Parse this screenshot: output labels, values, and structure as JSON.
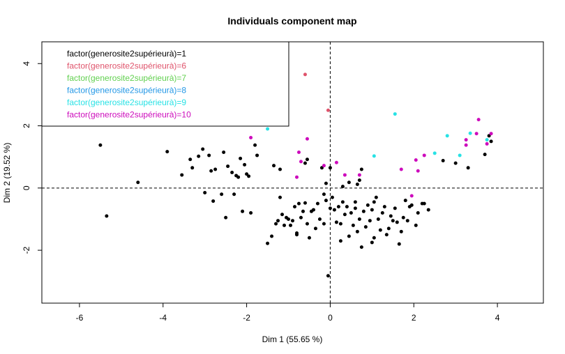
{
  "chart_data": {
    "type": "scatter",
    "title": "Individuals component map",
    "xlabel": "Dim 1 (55.65 %)",
    "ylabel": "Dim 2 (19.52 %)",
    "xlim": [
      -6.9,
      5.1
    ],
    "ylim": [
      -3.7,
      4.7
    ],
    "x_ticks": [
      -6,
      -4,
      -2,
      0,
      2,
      4
    ],
    "y_ticks": [
      -2,
      0,
      2,
      4
    ],
    "x_tick_labels": [
      "-6",
      "-4",
      "-2",
      "0",
      "2",
      "4"
    ],
    "y_tick_labels": [
      "-2",
      "0",
      "2",
      "4"
    ],
    "reference_lines": {
      "x": 0,
      "y": 0,
      "style": "dashed"
    },
    "legend": {
      "position": "top-left"
    },
    "series": [
      {
        "name": "factor(generosite2supérieurà)=1",
        "color": "#000000",
        "points": [
          [
            -5.5,
            1.38
          ],
          [
            -5.35,
            -0.9
          ],
          [
            -4.6,
            0.18
          ],
          [
            -3.9,
            1.17
          ],
          [
            -3.55,
            0.42
          ],
          [
            -3.35,
            0.92
          ],
          [
            -3.3,
            0.65
          ],
          [
            -3.15,
            1.02
          ],
          [
            -3.05,
            1.25
          ],
          [
            -3.0,
            -0.15
          ],
          [
            -2.9,
            1.05
          ],
          [
            -2.85,
            0.55
          ],
          [
            -2.8,
            -0.42
          ],
          [
            -2.75,
            0.6
          ],
          [
            -2.6,
            -0.2
          ],
          [
            -2.55,
            1.15
          ],
          [
            -2.5,
            -0.95
          ],
          [
            -2.45,
            0.7
          ],
          [
            -2.35,
            0.5
          ],
          [
            -2.3,
            -0.2
          ],
          [
            -2.25,
            0.4
          ],
          [
            -2.2,
            0.35
          ],
          [
            -2.15,
            0.95
          ],
          [
            -2.1,
            -0.75
          ],
          [
            -2.05,
            0.75
          ],
          [
            -2.0,
            0.45
          ],
          [
            -1.95,
            0.38
          ],
          [
            -1.9,
            -0.8
          ],
          [
            -1.8,
            1.38
          ],
          [
            -1.75,
            1.05
          ],
          [
            -1.55,
            3.0
          ],
          [
            -1.5,
            -1.78
          ],
          [
            -1.4,
            -1.55
          ],
          [
            -1.35,
            0.72
          ],
          [
            -1.3,
            -1.15
          ],
          [
            -1.25,
            -1.05
          ],
          [
            -1.2,
            0.6
          ],
          [
            -1.2,
            -0.3
          ],
          [
            -1.15,
            -0.85
          ],
          [
            -1.1,
            -1.2
          ],
          [
            -1.05,
            -0.95
          ],
          [
            -1.0,
            -1.0
          ],
          [
            -0.95,
            -1.2
          ],
          [
            -0.9,
            -1.05
          ],
          [
            -0.85,
            -0.6
          ],
          [
            -0.8,
            -1.5
          ],
          [
            -0.8,
            -1.45
          ],
          [
            -0.75,
            -0.5
          ],
          [
            -0.7,
            -0.95
          ],
          [
            -0.65,
            -0.75
          ],
          [
            -0.6,
            0.8
          ],
          [
            -0.6,
            -0.48
          ],
          [
            -0.55,
            0.92
          ],
          [
            -0.55,
            -1.15
          ],
          [
            -0.5,
            -1.6
          ],
          [
            -0.45,
            -0.75
          ],
          [
            -0.4,
            -0.7
          ],
          [
            -0.35,
            -1.3
          ],
          [
            -0.3,
            -0.5
          ],
          [
            -0.25,
            -1.0
          ],
          [
            -0.2,
            0.65
          ],
          [
            -0.15,
            -0.2
          ],
          [
            -0.15,
            -1.15
          ],
          [
            -0.1,
            0.15
          ],
          [
            -0.1,
            -0.4
          ],
          [
            -0.05,
            -2.82
          ],
          [
            0.0,
            0.65
          ],
          [
            0.0,
            -0.65
          ],
          [
            0.05,
            -0.3
          ],
          [
            0.1,
            -0.7
          ],
          [
            0.15,
            -1.1
          ],
          [
            0.2,
            -0.6
          ],
          [
            0.25,
            -1.15
          ],
          [
            0.25,
            -1.7
          ],
          [
            0.3,
            0.05
          ],
          [
            0.3,
            -0.45
          ],
          [
            0.35,
            -0.85
          ],
          [
            0.4,
            -0.6
          ],
          [
            0.45,
            -1.55
          ],
          [
            0.45,
            0.18
          ],
          [
            0.5,
            -0.8
          ],
          [
            0.55,
            -1.2
          ],
          [
            0.6,
            -0.45
          ],
          [
            0.6,
            -0.65
          ],
          [
            0.65,
            -1.4
          ],
          [
            0.65,
            0.12
          ],
          [
            0.7,
            0.25
          ],
          [
            0.7,
            -1.0
          ],
          [
            0.75,
            -1.9
          ],
          [
            0.75,
            0.6
          ],
          [
            0.8,
            -0.75
          ],
          [
            0.85,
            -1.25
          ],
          [
            0.9,
            -0.55
          ],
          [
            0.95,
            -1.05
          ],
          [
            1.0,
            -0.7
          ],
          [
            1.0,
            -1.75
          ],
          [
            1.05,
            -1.6
          ],
          [
            1.05,
            -0.45
          ],
          [
            1.1,
            -0.3
          ],
          [
            1.15,
            -1.0
          ],
          [
            1.2,
            -1.35
          ],
          [
            1.25,
            -0.8
          ],
          [
            1.3,
            -0.6
          ],
          [
            1.35,
            -1.5
          ],
          [
            1.4,
            -1.3
          ],
          [
            1.45,
            -0.9
          ],
          [
            1.5,
            -1.05
          ],
          [
            1.55,
            -0.65
          ],
          [
            1.6,
            -1.1
          ],
          [
            1.65,
            -1.8
          ],
          [
            1.7,
            -1.4
          ],
          [
            1.75,
            -0.95
          ],
          [
            1.8,
            -0.4
          ],
          [
            1.85,
            -1.05
          ],
          [
            1.9,
            -0.6
          ],
          [
            1.95,
            -0.55
          ],
          [
            2.05,
            -1.2
          ],
          [
            2.1,
            -0.8
          ],
          [
            2.2,
            -0.5
          ],
          [
            2.25,
            -0.5
          ],
          [
            2.35,
            -0.7
          ],
          [
            2.7,
            0.88
          ],
          [
            3.0,
            0.8
          ],
          [
            3.3,
            0.65
          ],
          [
            3.7,
            1.08
          ],
          [
            3.8,
            1.68
          ],
          [
            3.85,
            1.5
          ]
        ]
      },
      {
        "name": "factor(generosite2supérieurà)=6",
        "color": "#DF536B",
        "points": [
          [
            -0.6,
            3.65
          ],
          [
            -0.05,
            2.5
          ]
        ]
      },
      {
        "name": "factor(generosite2supérieurà)=7",
        "color": "#61D04F",
        "points": [
          [
            -3.35,
            2.32
          ]
        ]
      },
      {
        "name": "factor(generosite2supérieurà)=8",
        "color": "#2297E6",
        "points": [
          [
            -2.05,
            2.48
          ]
        ]
      },
      {
        "name": "factor(generosite2supérieurà)=9",
        "color": "#28E2E5",
        "points": [
          [
            -1.5,
            1.9
          ],
          [
            1.05,
            1.03
          ],
          [
            1.55,
            2.38
          ],
          [
            2.5,
            1.12
          ],
          [
            2.8,
            1.68
          ],
          [
            3.1,
            1.05
          ],
          [
            3.35,
            1.76
          ],
          [
            3.75,
            1.55
          ]
        ]
      },
      {
        "name": "factor(generosite2supérieurà)=10",
        "color": "#CD0BBC",
        "points": [
          [
            -1.9,
            1.62
          ],
          [
            -0.75,
            1.15
          ],
          [
            -0.7,
            0.85
          ],
          [
            -0.55,
            1.58
          ],
          [
            -0.8,
            0.35
          ],
          [
            0.15,
            0.82
          ],
          [
            -0.15,
            0.72
          ],
          [
            0.35,
            0.42
          ],
          [
            0.7,
            0.42
          ],
          [
            1.7,
            0.6
          ],
          [
            1.95,
            -0.25
          ],
          [
            2.05,
            0.9
          ],
          [
            2.1,
            0.55
          ],
          [
            2.25,
            1.05
          ],
          [
            3.25,
            1.38
          ],
          [
            3.25,
            1.55
          ],
          [
            3.5,
            1.75
          ],
          [
            3.55,
            2.2
          ],
          [
            3.75,
            1.42
          ],
          [
            3.85,
            1.75
          ]
        ]
      }
    ]
  }
}
